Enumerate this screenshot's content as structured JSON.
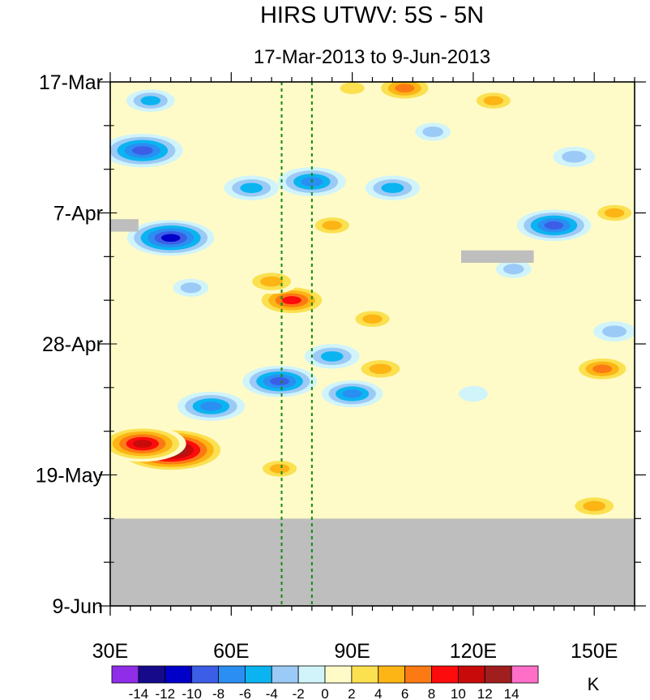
{
  "chart_data": {
    "type": "heatmap",
    "title": "HIRS UTWV: 5S - 5N",
    "subtitle": "17-Mar-2013 to 9-Jun-2013",
    "x_ticks": [
      {
        "value": 30,
        "label": "30E"
      },
      {
        "value": 60,
        "label": "60E"
      },
      {
        "value": 90,
        "label": "90E"
      },
      {
        "value": 120,
        "label": "120E"
      },
      {
        "value": 150,
        "label": "150E"
      }
    ],
    "xlim": [
      30,
      160
    ],
    "y_ticks": [
      {
        "value": 0,
        "label": "17-Mar"
      },
      {
        "value": 21,
        "label": "7-Apr"
      },
      {
        "value": 42,
        "label": "28-Apr"
      },
      {
        "value": 63,
        "label": "19-May"
      },
      {
        "value": 84,
        "label": "9-Jun"
      }
    ],
    "ylim": [
      0,
      84
    ],
    "y_units": "days since 17-Mar-2013 (downward)",
    "reference_lines_lon": [
      72.5,
      80
    ],
    "missing_data_rows": 14,
    "colorbar": {
      "label": "K",
      "levels": [
        "-14",
        "-12",
        "-10",
        "-8",
        "-6",
        "-4",
        "-2",
        "0",
        "2",
        "4",
        "6",
        "8",
        "10",
        "12",
        "14"
      ],
      "colors": [
        "#8f2de8",
        "#160a8a",
        "#0000c8",
        "#3c5ee6",
        "#2a8ef2",
        "#0bb4f0",
        "#9ccaf6",
        "#d0f4fa",
        "#fffbc8",
        "#fbe050",
        "#fcb514",
        "#fc7a14",
        "#fc0c0c",
        "#c80a0a",
        "#a01e1e",
        "#ff6fc8"
      ]
    },
    "anomalies": [
      {
        "lon": 45,
        "day": 59,
        "value": 15,
        "label": "strong positive"
      },
      {
        "lon": 38,
        "day": 58,
        "value": 11
      },
      {
        "lon": 75,
        "day": 35,
        "value": 9
      },
      {
        "lon": 70,
        "day": 32,
        "value": 6
      },
      {
        "lon": 103,
        "day": 1,
        "value": 7
      },
      {
        "lon": 90,
        "day": 1,
        "value": 4
      },
      {
        "lon": 125,
        "day": 3,
        "value": 5
      },
      {
        "lon": 155,
        "day": 21,
        "value": 5
      },
      {
        "lon": 152,
        "day": 46,
        "value": 7
      },
      {
        "lon": 97,
        "day": 46,
        "value": 6
      },
      {
        "lon": 150,
        "day": 68,
        "value": 6
      },
      {
        "lon": 95,
        "day": 38,
        "value": 5
      },
      {
        "lon": 72,
        "day": 62,
        "value": 5
      },
      {
        "lon": 85,
        "day": 23,
        "value": 5
      },
      {
        "lon": 38,
        "day": 11,
        "value": -10
      },
      {
        "lon": 45,
        "day": 25,
        "value": -11
      },
      {
        "lon": 65,
        "day": 17,
        "value": -6
      },
      {
        "lon": 80,
        "day": 16,
        "value": -8
      },
      {
        "lon": 100,
        "day": 17,
        "value": -6
      },
      {
        "lon": 140,
        "day": 23,
        "value": -9
      },
      {
        "lon": 40,
        "day": 3,
        "value": -5
      },
      {
        "lon": 72,
        "day": 48,
        "value": -9
      },
      {
        "lon": 55,
        "day": 52,
        "value": -8
      },
      {
        "lon": 90,
        "day": 50,
        "value": -7
      },
      {
        "lon": 85,
        "day": 44,
        "value": -6
      },
      {
        "lon": 130,
        "day": 30,
        "value": -3
      },
      {
        "lon": 50,
        "day": 33,
        "value": -3
      },
      {
        "lon": 120,
        "day": 50,
        "value": -2
      },
      {
        "lon": 155,
        "day": 40,
        "value": -4
      },
      {
        "lon": 110,
        "day": 8,
        "value": -3
      },
      {
        "lon": 145,
        "day": 12,
        "value": -4
      }
    ],
    "missing_patches": [
      {
        "lon_range": [
          30,
          37
        ],
        "day_range": [
          22,
          24
        ]
      },
      {
        "lon_range": [
          117,
          135
        ],
        "day_range": [
          27,
          29
        ]
      },
      {
        "lon_range": [
          30,
          160
        ],
        "day_range": [
          70,
          84
        ]
      }
    ]
  }
}
